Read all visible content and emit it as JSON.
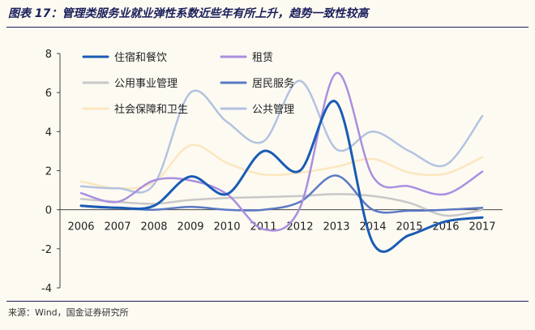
{
  "title": "图表 17：管理类服务业就业弹性系数近些年有所上升，趋势一致性较高",
  "source": "来源：Wind，国金证券研究所",
  "chart_data": {
    "type": "line",
    "smooth": true,
    "x": [
      "2006",
      "2007",
      "2008",
      "2009",
      "2010",
      "2011",
      "2012",
      "2013",
      "2014",
      "2015",
      "2016",
      "2017"
    ],
    "ylim": [
      -4,
      8
    ],
    "yticks": [
      "-4",
      "-2",
      "0",
      "2",
      "4",
      "6",
      "8"
    ],
    "grid": false,
    "legend_position": "top",
    "series": [
      {
        "name": "住宿和餐饮",
        "color": "#1a5bb5",
        "width": 3,
        "values": [
          0.2,
          0.1,
          0.2,
          1.7,
          0.8,
          3.0,
          2.0,
          5.5,
          -1.7,
          -1.3,
          -0.6,
          -0.4
        ]
      },
      {
        "name": "租赁",
        "color": "#a98fe0",
        "width": 2.5,
        "values": [
          0.85,
          0.4,
          1.5,
          1.5,
          0.8,
          -1.0,
          0.1,
          7.0,
          1.7,
          1.2,
          0.8,
          1.95
        ]
      },
      {
        "name": "公用事业管理",
        "color": "#c8c8c8",
        "width": 2.5,
        "values": [
          0.55,
          0.4,
          0.3,
          0.5,
          0.6,
          0.65,
          0.7,
          0.8,
          0.7,
          0.35,
          -0.3,
          0.0
        ]
      },
      {
        "name": "居民服务",
        "color": "#5b79c4",
        "width": 2.5,
        "values": [
          0.2,
          0.1,
          0.0,
          0.15,
          0.0,
          0.0,
          0.4,
          1.75,
          0.0,
          -0.05,
          0.0,
          0.1
        ]
      },
      {
        "name": "社会保障和卫生",
        "color": "#fbe7bf",
        "width": 2.5,
        "values": [
          1.45,
          1.1,
          1.4,
          3.3,
          2.4,
          1.8,
          1.9,
          2.2,
          2.6,
          1.9,
          1.85,
          2.7
        ]
      },
      {
        "name": "公共管理",
        "color": "#b3c3e0",
        "width": 2.5,
        "values": [
          1.2,
          1.1,
          1.3,
          6.0,
          4.5,
          3.5,
          6.6,
          3.1,
          4.0,
          3.0,
          2.3,
          4.8
        ]
      }
    ]
  }
}
